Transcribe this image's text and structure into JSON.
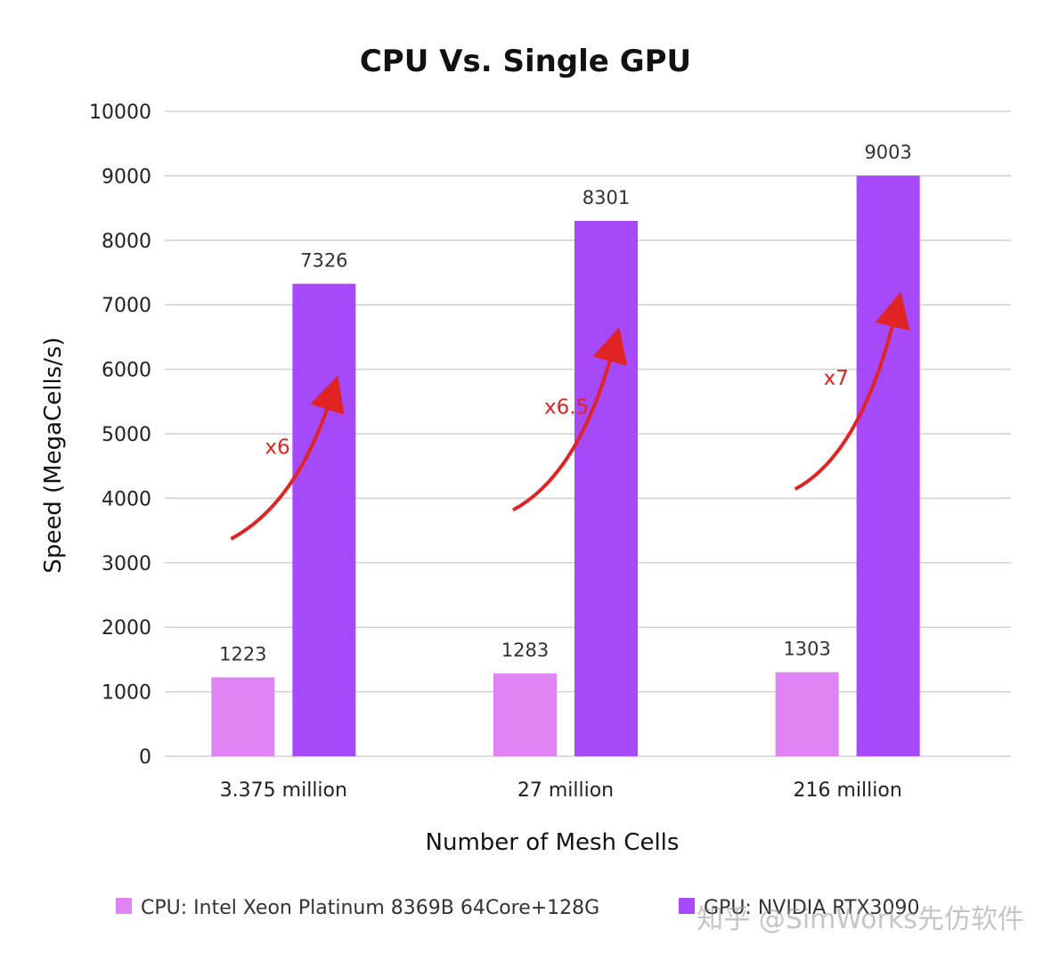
{
  "chart_data": {
    "type": "bar",
    "title": "CPU Vs. Single GPU",
    "xlabel": "Number of Mesh Cells",
    "ylabel": "Speed (MegaCells/s)",
    "ylim": [
      0,
      10000
    ],
    "yticks": [
      0,
      1000,
      2000,
      3000,
      4000,
      5000,
      6000,
      7000,
      8000,
      9000,
      10000
    ],
    "grid": true,
    "legend_position": "bottom",
    "categories": [
      "3.375 million",
      "27 million",
      "216 million"
    ],
    "series": [
      {
        "name": "CPU: Intel Xeon Platinum 8369B 64Core+128G",
        "values": [
          1223,
          1283,
          1303
        ],
        "color": "#e083f5"
      },
      {
        "name": "GPU: NVIDIA RTX3090",
        "values": [
          7326,
          8301,
          9003
        ],
        "color": "#a64af9"
      }
    ],
    "annotations": [
      "x6",
      "x6.5",
      "x7"
    ],
    "annotation_color": "#e02424"
  },
  "watermark": "知乎 @SimWorks先仿软件"
}
